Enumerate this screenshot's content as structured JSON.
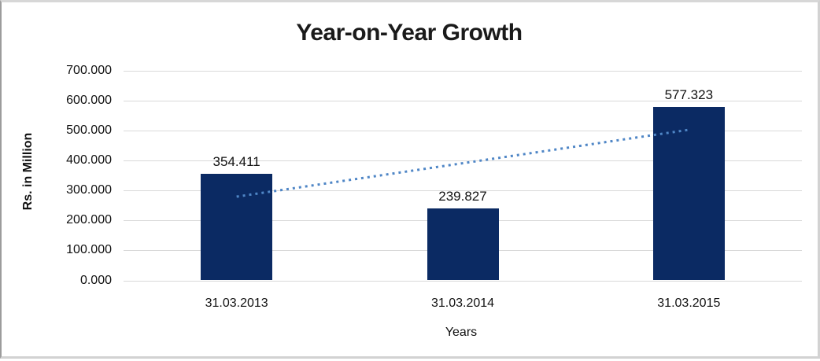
{
  "chart_data": {
    "type": "bar",
    "title": "Year-on-Year Growth",
    "categories": [
      "31.03.2013",
      "31.03.2014",
      "31.03.2015"
    ],
    "values": [
      354.411,
      239.827,
      577.323
    ],
    "data_labels": [
      "354.411",
      "239.827",
      "577.323"
    ],
    "xlabel": "Years",
    "ylabel": "Rs. in Million",
    "ylim": [
      0,
      700
    ],
    "ytick_step": 100,
    "ytick_labels": [
      "0.000",
      "100.000",
      "200.000",
      "300.000",
      "400.000",
      "500.000",
      "600.000",
      "700.000"
    ],
    "grid": true,
    "legend": "none",
    "bar_color": "#0b2a63",
    "gridline_color": "#d9d9d9",
    "text_color": "#111111",
    "trendline": {
      "type": "linear",
      "style": "dotted",
      "color": "#4f86c6",
      "endpoint_values": [
        279.1,
        502.0
      ]
    }
  }
}
